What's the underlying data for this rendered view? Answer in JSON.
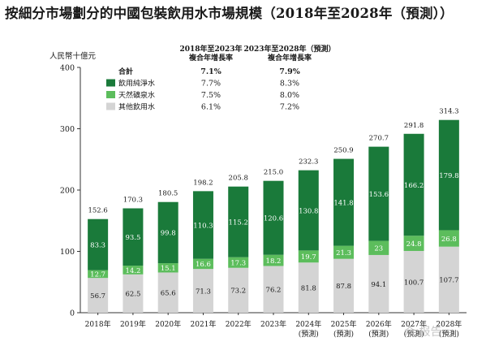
{
  "title": "按細分市場劃分的中國包裝飲用水市場規模（2018年至2028年（預測））",
  "watermark": "众 报告",
  "chart_data": {
    "type": "bar",
    "stacked": true,
    "ylabel": "人民幣十億元",
    "ylim": [
      0,
      400
    ],
    "yticks": [
      0,
      100,
      200,
      300,
      400
    ],
    "categories": [
      [
        "2018年"
      ],
      [
        "2019年"
      ],
      [
        "2020年"
      ],
      [
        "2021年"
      ],
      [
        "2022年"
      ],
      [
        "2023年"
      ],
      [
        "2024年",
        "(預測)"
      ],
      [
        "2025年",
        "(預測)"
      ],
      [
        "2026年",
        "(預測)"
      ],
      [
        "2027年",
        "(預測)"
      ],
      [
        "2028年",
        "(預測)"
      ]
    ],
    "series": [
      {
        "name": "其他飲用水",
        "color": "#d4d4d4",
        "label_color": "#1a1a1a",
        "values": [
          56.7,
          62.5,
          65.6,
          71.3,
          73.2,
          76.2,
          81.8,
          87.8,
          94.1,
          100.7,
          107.7
        ]
      },
      {
        "name": "天然礦泉水",
        "color": "#5cbd5c",
        "label_color": "#ffffff",
        "values": [
          12.7,
          14.2,
          15.1,
          16.6,
          17.3,
          18.2,
          19.7,
          21.3,
          23.0,
          24.8,
          26.8
        ]
      },
      {
        "name": "飲用純淨水",
        "color": "#1a7a3a",
        "label_color": "#ffffff",
        "values": [
          83.3,
          93.5,
          99.8,
          110.3,
          115.2,
          120.6,
          130.8,
          141.8,
          153.6,
          166.2,
          179.8
        ]
      }
    ],
    "totals": [
      152.6,
      170.3,
      180.5,
      198.2,
      205.8,
      215.0,
      232.3,
      250.9,
      270.7,
      291.8,
      314.3
    ],
    "cagr_table": {
      "headers": [
        [
          "2018年至2023年",
          "複合年增長率"
        ],
        [
          "2023年至2028年（預測）",
          "複合年增長率"
        ]
      ],
      "rows": [
        {
          "label": "合計",
          "bold": true,
          "values": [
            "7.1%",
            "7.9%"
          ]
        },
        {
          "label": "飲用純淨水",
          "swatch": "#1a7a3a",
          "values": [
            "7.7%",
            "8.3%"
          ]
        },
        {
          "label": "天然礦泉水",
          "swatch": "#5cbd5c",
          "values": [
            "7.5%",
            "8.0%"
          ]
        },
        {
          "label": "其他飲用水",
          "swatch": "#d4d4d4",
          "values": [
            "6.1%",
            "7.2%"
          ]
        }
      ]
    }
  }
}
